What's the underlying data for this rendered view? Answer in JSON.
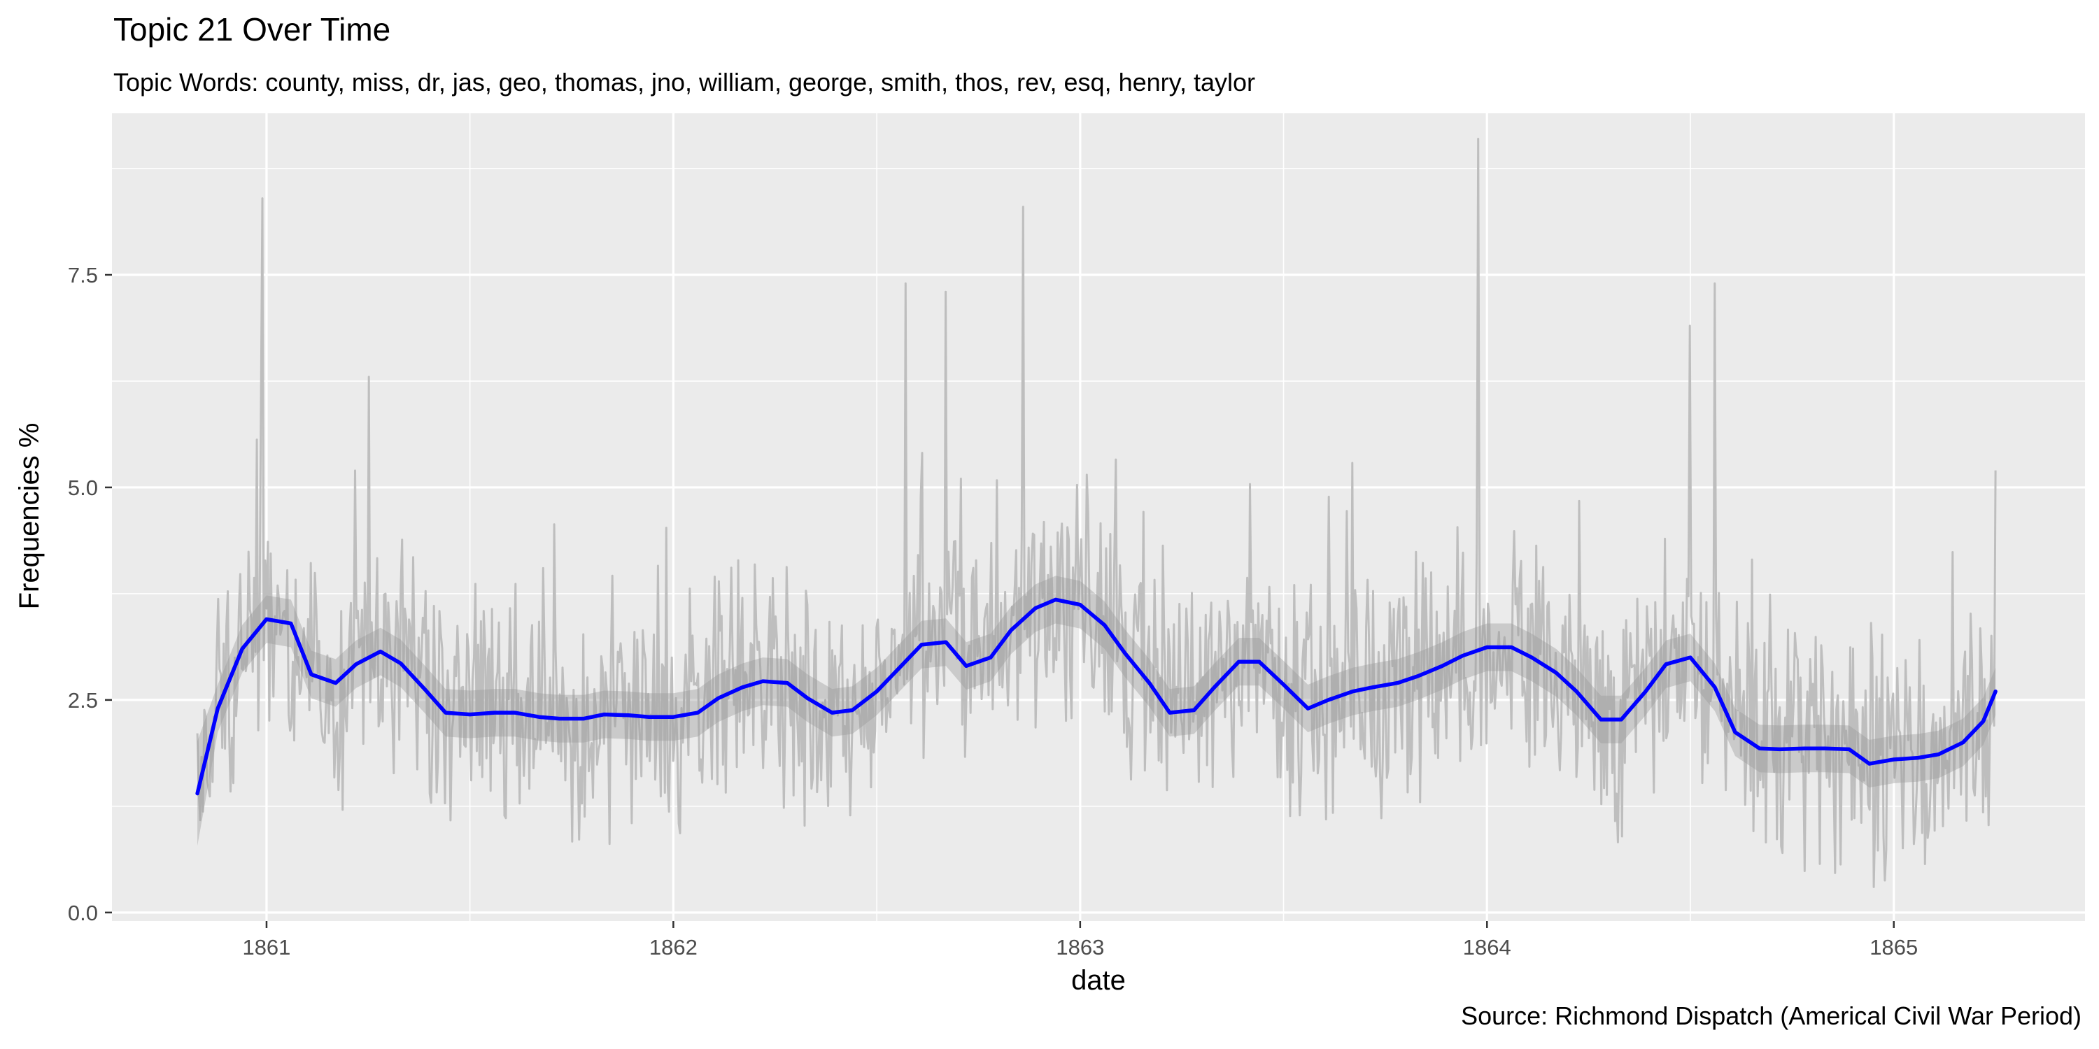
{
  "chart_data": {
    "type": "line",
    "title": "Topic 21 Over Time",
    "subtitle": "Topic Words: county, miss, dr, jas, geo, thomas, jno, william, george, smith, thos, rev, esq, henry, taylor",
    "xlabel": "date",
    "ylabel": "Frequencies %",
    "caption": "Source: Richmond Dispatch (Americal Civil War Period)",
    "xlim": [
      1860.62,
      1865.47
    ],
    "ylim": [
      -0.1,
      9.4
    ],
    "x_ticks": [
      1861,
      1862,
      1863,
      1864,
      1865
    ],
    "x_tick_labels": [
      "1861",
      "1862",
      "1863",
      "1864",
      "1865"
    ],
    "y_ticks": [
      0,
      2.5,
      5,
      7.5
    ],
    "y_tick_labels": [
      "0.0",
      "2.5",
      "5.0",
      "7.5"
    ],
    "grid": true,
    "colors": {
      "panel": "#ebebeb",
      "grid_major": "#ffffff",
      "raw_line": "#bebebe",
      "smooth_line": "#0000ff",
      "confidence_band": "#999999"
    },
    "series": [
      {
        "kind": "raw",
        "x_range": [
          1860.83,
          1865.25
        ],
        "peaks": [
          {
            "x": 1860.99,
            "y": 8.4
          },
          {
            "x": 1861.25,
            "y": 6.3
          },
          {
            "x": 1862.57,
            "y": 7.4
          },
          {
            "x": 1862.67,
            "y": 7.3
          },
          {
            "x": 1862.86,
            "y": 8.3
          },
          {
            "x": 1863.98,
            "y": 9.1
          },
          {
            "x": 1864.5,
            "y": 6.9
          },
          {
            "x": 1864.56,
            "y": 7.4
          },
          {
            "x": 1865.25,
            "y": 5.2
          }
        ]
      },
      {
        "kind": "smooth",
        "band_halfwidth": 0.28,
        "x": [
          1860.83,
          1860.88,
          1860.94,
          1861.0,
          1861.06,
          1861.11,
          1861.17,
          1861.22,
          1861.28,
          1861.33,
          1861.39,
          1861.44,
          1861.5,
          1861.56,
          1861.61,
          1861.67,
          1861.72,
          1861.78,
          1861.83,
          1861.89,
          1861.94,
          1862.0,
          1862.06,
          1862.11,
          1862.17,
          1862.22,
          1862.28,
          1862.33,
          1862.39,
          1862.44,
          1862.5,
          1862.56,
          1862.61,
          1862.67,
          1862.72,
          1862.78,
          1862.83,
          1862.89,
          1862.94,
          1863.0,
          1863.06,
          1863.11,
          1863.17,
          1863.22,
          1863.28,
          1863.33,
          1863.39,
          1863.44,
          1863.5,
          1863.56,
          1863.61,
          1863.67,
          1863.72,
          1863.78,
          1863.83,
          1863.89,
          1863.94,
          1864.0,
          1864.06,
          1864.11,
          1864.17,
          1864.22,
          1864.28,
          1864.33,
          1864.39,
          1864.44,
          1864.5,
          1864.56,
          1864.61,
          1864.67,
          1864.72,
          1864.78,
          1864.83,
          1864.89,
          1864.94,
          1865.0,
          1865.06,
          1865.11,
          1865.17,
          1865.22,
          1865.25
        ],
        "y": [
          1.4,
          2.4,
          3.1,
          3.45,
          3.4,
          2.8,
          2.7,
          2.92,
          3.07,
          2.93,
          2.62,
          2.35,
          2.33,
          2.35,
          2.35,
          2.3,
          2.28,
          2.28,
          2.33,
          2.32,
          2.3,
          2.3,
          2.35,
          2.52,
          2.65,
          2.72,
          2.7,
          2.52,
          2.35,
          2.38,
          2.6,
          2.9,
          3.15,
          3.18,
          2.9,
          3.0,
          3.32,
          3.58,
          3.68,
          3.62,
          3.38,
          3.05,
          2.7,
          2.35,
          2.38,
          2.65,
          2.95,
          2.95,
          2.68,
          2.4,
          2.5,
          2.6,
          2.65,
          2.7,
          2.78,
          2.9,
          3.02,
          3.12,
          3.12,
          3.0,
          2.82,
          2.6,
          2.27,
          2.27,
          2.6,
          2.92,
          3.0,
          2.65,
          2.12,
          1.93,
          1.92,
          1.93,
          1.93,
          1.92,
          1.75,
          1.8,
          1.82,
          1.86,
          2.0,
          2.25,
          2.6
        ]
      }
    ]
  }
}
